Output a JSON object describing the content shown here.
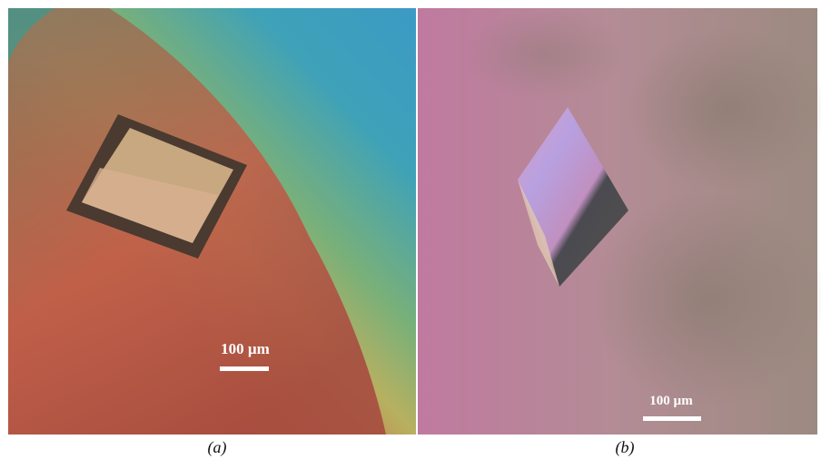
{
  "panels": [
    {
      "scale_label": "100 µm",
      "caption": "(a)"
    },
    {
      "scale_label": "100 µm",
      "caption": "(b)"
    }
  ]
}
